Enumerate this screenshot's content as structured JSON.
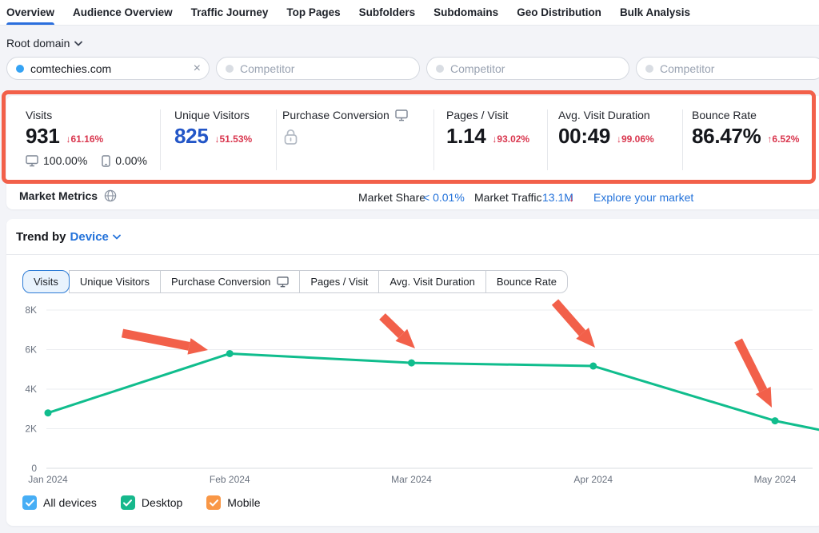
{
  "nav": {
    "tabs": [
      {
        "label": "Overview",
        "active": true
      },
      {
        "label": "Audience Overview"
      },
      {
        "label": "Traffic Journey"
      },
      {
        "label": "Top Pages"
      },
      {
        "label": "Subfolders"
      },
      {
        "label": "Subdomains"
      },
      {
        "label": "Geo Distribution"
      },
      {
        "label": "Bulk Analysis"
      }
    ]
  },
  "scope": {
    "label": "Root domain"
  },
  "domains": {
    "main": {
      "value": "comtechies.com",
      "dot_color": "#35a3f4",
      "clear_icon": "×"
    },
    "competitor_placeholder": "Competitor",
    "competitor_dot_color": "#d9dde3"
  },
  "metrics": {
    "visits": {
      "label": "Visits",
      "value": "931",
      "change": "↓61.16%",
      "desktop_share": "100.00%",
      "mobile_share": "0.00%"
    },
    "unique_visitors": {
      "label": "Unique Visitors",
      "value": "825",
      "change": "↓51.53%"
    },
    "purchase_conversion": {
      "label": "Purchase Conversion",
      "locked": true
    },
    "pages_per_visit": {
      "label": "Pages / Visit",
      "value": "1.14",
      "change": "↓93.02%"
    },
    "avg_visit_duration": {
      "label": "Avg. Visit Duration",
      "value": "00:49",
      "change": "↓99.06%"
    },
    "bounce_rate": {
      "label": "Bounce Rate",
      "value": "86.47%",
      "change": "↑6.52%"
    }
  },
  "market": {
    "title": "Market Metrics",
    "share_label": "Market Share",
    "share_value": "< 0.01%",
    "traffic_label": "Market Traffic",
    "traffic_value": "13.1M",
    "traffic_arrow": "↓",
    "explore_link": "Explore your market"
  },
  "trend": {
    "title_prefix": "Trend by",
    "title_accent": "Device",
    "tabs": [
      {
        "label": "Visits",
        "active": true
      },
      {
        "label": "Unique Visitors"
      },
      {
        "label": "Purchase Conversion",
        "desktop_icon": true
      },
      {
        "label": "Pages / Visit"
      },
      {
        "label": "Avg. Visit Duration"
      },
      {
        "label": "Bounce Rate"
      }
    ],
    "legend": [
      {
        "label": "All devices",
        "color": "#47aef5",
        "checked": true
      },
      {
        "label": "Desktop",
        "color": "#17b88c",
        "checked": true
      },
      {
        "label": "Mobile",
        "color": "#f99746",
        "checked": true
      }
    ]
  },
  "chart_data": {
    "type": "line",
    "title": "Trend by Device — Visits",
    "x_labels": [
      "Jan 2024",
      "Feb 2024",
      "Mar 2024",
      "Apr 2024",
      "May 2024"
    ],
    "series": [
      {
        "name": "Visits — All devices",
        "color": "#10bd8d",
        "values": [
          2800,
          5800,
          5330,
          5170,
          2400
        ],
        "trailing_partial_value": 1950
      }
    ],
    "ylim": [
      0,
      8000
    ],
    "yticks": [
      {
        "label": "0",
        "value": 0
      },
      {
        "label": "2K",
        "value": 2000
      },
      {
        "label": "4K",
        "value": 4000
      },
      {
        "label": "6K",
        "value": 6000
      },
      {
        "label": "8K",
        "value": 8000
      }
    ],
    "grid": true,
    "legend_position": "bottom",
    "annotations": {
      "arrow_color": "#f2604a",
      "note": "four red arrows pointing at the Feb, Mar, Apr and May data points",
      "arrows": [
        {
          "from": [
            145,
            45
          ],
          "to": [
            252,
            66
          ]
        },
        {
          "from": [
            470,
            24
          ],
          "to": [
            511,
            64
          ]
        },
        {
          "from": [
            686,
            6
          ],
          "to": [
            736,
            63
          ]
        },
        {
          "from": [
            915,
            54
          ],
          "to": [
            957,
            138
          ]
        }
      ]
    }
  },
  "colors": {
    "accent_blue": "#2372da",
    "value_blue": "#2356c7",
    "negative_red": "#d9364e",
    "annotation": "#f2604a",
    "line_green": "#10bd8d",
    "page_bg": "#f3f4f8"
  }
}
